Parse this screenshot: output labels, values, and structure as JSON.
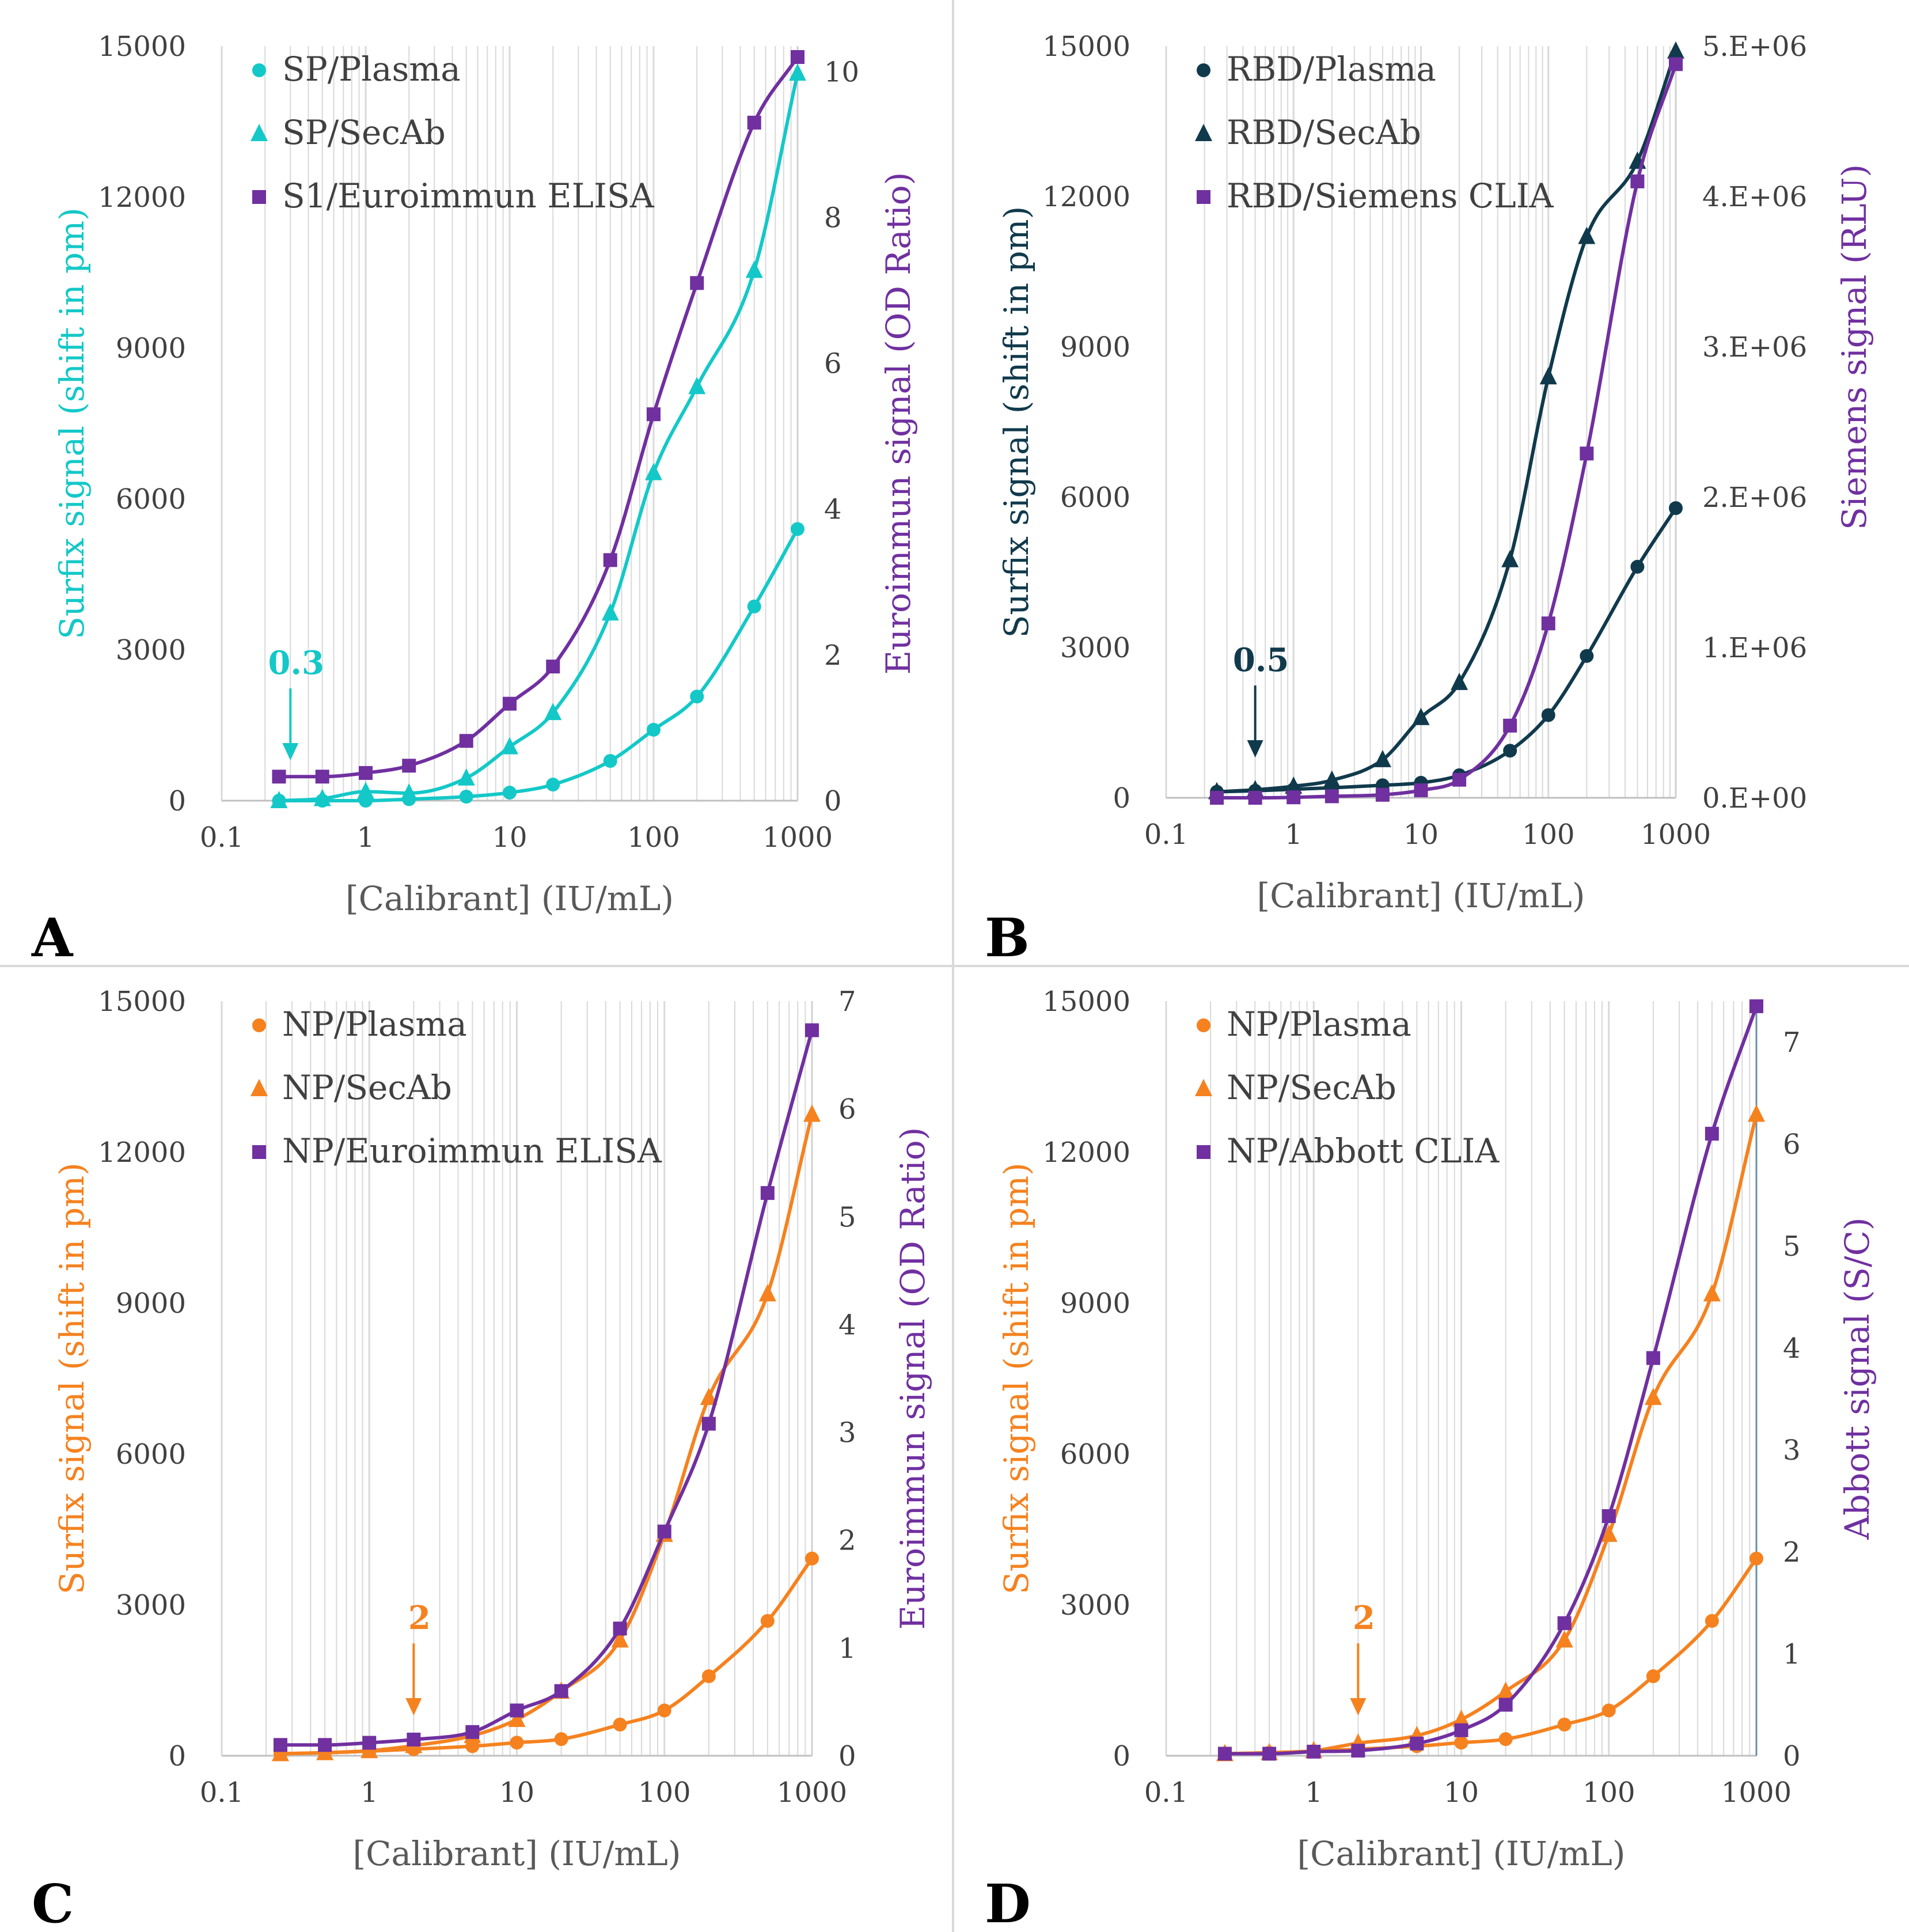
{
  "figure": {
    "title": "",
    "panel_divider_color": "#d9d9d9"
  },
  "colors": {
    "cyan": "#14c8c8",
    "navy": "#103a4c",
    "purple": "#7030a0",
    "orange": "#f5821f",
    "grid": "#d9d9d9",
    "axis": "#7f7f7f",
    "tick_text": "#404040"
  },
  "chart_data": [
    {
      "panel": "A",
      "type": "scatter",
      "xscale": "log",
      "xlim": [
        0.1,
        1000
      ],
      "xticks": [
        "0.1",
        "1",
        "10",
        "100",
        "1000"
      ],
      "xlabel": "[Calibrant] (IU/mL)",
      "y_left": {
        "label": "Surfix signal (shift in pm)",
        "color": "#14c8c8",
        "lim": [
          0,
          15000
        ],
        "ticks": [
          "0",
          "3000",
          "6000",
          "9000",
          "12000",
          "15000"
        ]
      },
      "y_right": {
        "label": "Euroimmun signal (OD Ratio)",
        "color": "#7030a0",
        "lim": [
          0,
          10.35
        ],
        "ticks": [
          "0",
          "2",
          "4",
          "6",
          "8",
          "10"
        ]
      },
      "annotation": {
        "text": "0.3",
        "x": 0.3,
        "color": "#14c8c8"
      },
      "series": [
        {
          "name": "SP/Plasma",
          "axis": "left",
          "marker": "circle",
          "color": "#14c8c8",
          "x": [
            0.25,
            0.5,
            1,
            2,
            5,
            10,
            20,
            50,
            100,
            200,
            500,
            1000
          ],
          "y": [
            0,
            0,
            0,
            30,
            80,
            160,
            320,
            790,
            1410,
            2070,
            3860,
            5400
          ]
        },
        {
          "name": "SP/SecAb",
          "axis": "left",
          "marker": "triangle",
          "color": "#14c8c8",
          "x": [
            0.25,
            0.5,
            1,
            2,
            5,
            10,
            20,
            50,
            100,
            200,
            500,
            1000
          ],
          "y": [
            0,
            40,
            180,
            150,
            450,
            1070,
            1750,
            3730,
            6520,
            8230,
            10540,
            14460
          ]
        },
        {
          "name": "S1/Euroimmun ELISA",
          "axis": "right",
          "marker": "square",
          "color": "#7030a0",
          "x": [
            0.25,
            0.5,
            1,
            2,
            5,
            10,
            20,
            50,
            100,
            200,
            500,
            1000
          ],
          "y": [
            0.33,
            0.33,
            0.38,
            0.48,
            0.82,
            1.33,
            1.84,
            3.3,
            5.3,
            7.1,
            9.3,
            10.2
          ]
        }
      ]
    },
    {
      "panel": "B",
      "type": "scatter",
      "xscale": "log",
      "xlim": [
        0.1,
        1000
      ],
      "xticks": [
        "0.1",
        "1",
        "10",
        "100",
        "1000"
      ],
      "xlabel": "[Calibrant] (IU/mL)",
      "y_left": {
        "label": "Surfix signal (shift in pm)",
        "color": "#103a4c",
        "lim": [
          0,
          15000
        ],
        "ticks": [
          "0",
          "3000",
          "6000",
          "9000",
          "12000",
          "15000"
        ]
      },
      "y_right": {
        "label": "Siemens signal (RLU)",
        "color": "#7030a0",
        "lim": [
          0,
          5000000
        ],
        "ticks": [
          "0.E+00",
          "1.E+06",
          "2.E+06",
          "3.E+06",
          "4.E+06",
          "5.E+06"
        ]
      },
      "annotation": {
        "text": "0.5",
        "x": 0.5,
        "color": "#103a4c"
      },
      "series": [
        {
          "name": "RBD/Plasma",
          "axis": "left",
          "marker": "circle",
          "color": "#103a4c",
          "x": [
            0.25,
            0.5,
            1,
            2,
            5,
            10,
            20,
            50,
            100,
            200,
            500,
            1000
          ],
          "y": [
            120,
            140,
            170,
            200,
            250,
            300,
            450,
            940,
            1650,
            2830,
            4610,
            5780
          ]
        },
        {
          "name": "RBD/SecAb",
          "axis": "left",
          "marker": "triangle",
          "color": "#103a4c",
          "x": [
            0.25,
            0.5,
            1,
            2,
            5,
            10,
            20,
            50,
            100,
            200,
            500,
            1000
          ],
          "y": [
            120,
            160,
            230,
            350,
            760,
            1600,
            2300,
            4750,
            8400,
            11200,
            12700,
            14900
          ]
        },
        {
          "name": "RBD/Siemens CLIA",
          "axis": "right",
          "marker": "square",
          "color": "#7030a0",
          "x": [
            0.25,
            0.5,
            1,
            2,
            5,
            10,
            20,
            50,
            100,
            200,
            500,
            1000
          ],
          "y": [
            0,
            0,
            3000,
            10000,
            20000,
            50000,
            120000,
            480000,
            1160000,
            2290000,
            4100000,
            4880000
          ]
        }
      ]
    },
    {
      "panel": "C",
      "type": "scatter",
      "xscale": "log",
      "xlim": [
        0.1,
        1000
      ],
      "xticks": [
        "0.1",
        "1",
        "10",
        "100",
        "1000"
      ],
      "xlabel": "[Calibrant] (IU/mL)",
      "y_left": {
        "label": "Surfix signal (shift in pm)",
        "color": "#f5821f",
        "lim": [
          0,
          15000
        ],
        "ticks": [
          "0",
          "3000",
          "6000",
          "9000",
          "12000",
          "15000"
        ]
      },
      "y_right": {
        "label": "Euroimmun signal (OD Ratio)",
        "color": "#7030a0",
        "lim": [
          0,
          7
        ],
        "ticks": [
          "0",
          "1",
          "2",
          "3",
          "4",
          "5",
          "6",
          "7"
        ]
      },
      "annotation": {
        "text": "2",
        "x": 2,
        "color": "#f5821f"
      },
      "series": [
        {
          "name": "NP/Plasma",
          "axis": "left",
          "marker": "circle",
          "color": "#f5821f",
          "x": [
            0.25,
            0.5,
            1,
            2,
            5,
            10,
            20,
            50,
            100,
            200,
            500,
            1000
          ],
          "y": [
            40,
            60,
            90,
            130,
            190,
            260,
            330,
            620,
            900,
            1580,
            2680,
            3920
          ]
        },
        {
          "name": "NP/SecAb",
          "axis": "left",
          "marker": "triangle",
          "color": "#f5821f",
          "x": [
            0.25,
            0.5,
            1,
            2,
            5,
            10,
            20,
            50,
            100,
            200,
            500,
            1000
          ],
          "y": [
            40,
            60,
            100,
            200,
            400,
            720,
            1280,
            2300,
            4400,
            7120,
            9180,
            12750
          ]
        },
        {
          "name": "NP/Euroimmun ELISA",
          "axis": "right",
          "marker": "square",
          "color": "#7030a0",
          "x": [
            0.25,
            0.5,
            1,
            2,
            5,
            10,
            20,
            50,
            100,
            200,
            500,
            1000
          ],
          "y": [
            0.1,
            0.1,
            0.12,
            0.15,
            0.22,
            0.42,
            0.6,
            1.18,
            2.08,
            3.08,
            5.22,
            6.73
          ]
        }
      ]
    },
    {
      "panel": "D",
      "type": "scatter",
      "xscale": "log",
      "xlim": [
        0.1,
        1000
      ],
      "xticks": [
        "0.1",
        "1",
        "10",
        "100",
        "1000"
      ],
      "xlabel": "[Calibrant] (IU/mL)",
      "y_left": {
        "label": "Surfix signal (shift in pm)",
        "color": "#f5821f",
        "lim": [
          0,
          15000
        ],
        "ticks": [
          "0",
          "3000",
          "6000",
          "9000",
          "12000",
          "15000"
        ]
      },
      "y_right": {
        "label": "Abbott signal (S/C)",
        "color": "#7030a0",
        "lim": [
          0,
          7.4
        ],
        "ticks": [
          "0",
          "1",
          "2",
          "3",
          "4",
          "5",
          "6",
          "7"
        ]
      },
      "annotation": {
        "text": "2",
        "x": 2,
        "color": "#f5821f"
      },
      "series": [
        {
          "name": "NP/Plasma",
          "axis": "left",
          "marker": "circle",
          "color": "#f5821f",
          "x": [
            0.25,
            0.5,
            1,
            2,
            5,
            10,
            20,
            50,
            100,
            200,
            500,
            1000
          ],
          "y": [
            40,
            60,
            90,
            130,
            190,
            260,
            330,
            620,
            900,
            1580,
            2680,
            3920
          ]
        },
        {
          "name": "NP/SecAb",
          "axis": "left",
          "marker": "triangle",
          "color": "#f5821f",
          "x": [
            0.25,
            0.5,
            1,
            2,
            5,
            10,
            20,
            50,
            100,
            200,
            500,
            1000
          ],
          "y": [
            40,
            60,
            100,
            250,
            400,
            720,
            1280,
            2300,
            4400,
            7120,
            9180,
            12750
          ]
        },
        {
          "name": "NP/Abbott CLIA",
          "axis": "right",
          "marker": "square",
          "color": "#7030a0",
          "x": [
            0.25,
            0.5,
            1,
            2,
            5,
            10,
            20,
            50,
            100,
            200,
            500,
            1000
          ],
          "y": [
            0.02,
            0.02,
            0.04,
            0.05,
            0.12,
            0.25,
            0.5,
            1.3,
            2.35,
            3.9,
            6.1,
            7.35
          ]
        }
      ]
    }
  ]
}
